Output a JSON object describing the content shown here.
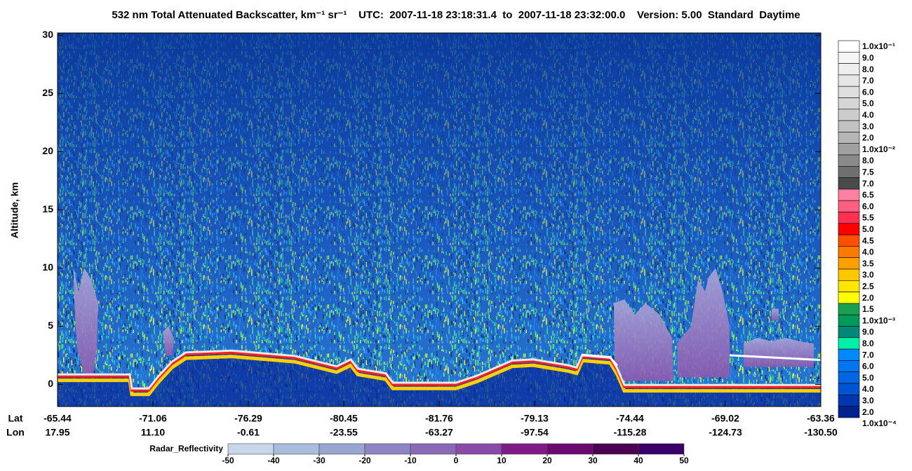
{
  "chart_data": {
    "type": "curtain",
    "title": "532 nm Total Attenuated Backscatter, km⁻¹ sr⁻¹    UTC:  2007-11-18 23:18:31.4  to  2007-11-18 23:32:00.0    Version: 5.00  Standard  Daytime",
    "y_label": "Altitude, km",
    "ylim": [
      -1.9,
      30.2
    ],
    "yticks": [
      0,
      5,
      10,
      15,
      20,
      25,
      30
    ],
    "lat_label": "Lat",
    "lon_label": "Lon",
    "lat": [
      "-65.44",
      "-71.06",
      "-76.29",
      "-80.45",
      "-81.76",
      "-79.13",
      "-74.44",
      "-69.02",
      "-63.36"
    ],
    "lon": [
      "17.95",
      "11.10",
      "-0.61",
      "-23.55",
      "-63.27",
      "-97.54",
      "-115.28",
      "-124.73",
      "-130.50"
    ],
    "colorbar": {
      "labels": [
        "1.0x10⁻¹",
        "9.0",
        "8.0",
        "7.0",
        "6.0",
        "5.0",
        "4.0",
        "3.0",
        "2.0",
        "1.0x10⁻²",
        "8.0",
        "7.5",
        "7.0",
        "6.5",
        "6.0",
        "5.5",
        "5.0",
        "4.5",
        "4.0",
        "3.5",
        "3.0",
        "2.5",
        "2.0",
        "1.5",
        "1.0x10⁻³",
        "9.0",
        "8.0",
        "7.0",
        "6.0",
        "5.0",
        "4.0",
        "3.0",
        "2.0",
        "1.0x10⁻⁴"
      ],
      "colors": [
        "#ffffff",
        "#f6f6f6",
        "#eeeeee",
        "#e6e6e6",
        "#dedede",
        "#d6d6d6",
        "#cccccc",
        "#c2c2c2",
        "#b6b6b6",
        "#a0a0a0",
        "#8a8a8a",
        "#707070",
        "#4a4a4a",
        "#ff80a0",
        "#ff6080",
        "#ff3050",
        "#ff0000",
        "#ff5000",
        "#ff7800",
        "#ffa000",
        "#ffc800",
        "#ffe600",
        "#ffff00",
        "#1aa050",
        "#009a5a",
        "#008878",
        "#00f0a8",
        "#0088ff",
        "#0076f2",
        "#0066e4",
        "#0054d4",
        "#0036b0",
        "#00228f"
      ]
    },
    "radar": {
      "label": "Radar_Reflectivity",
      "ticks": [
        -50,
        -40,
        -30,
        -20,
        -10,
        0,
        10,
        20,
        30,
        40,
        50
      ],
      "colors": [
        "#c8d6ea",
        "#a8bcdc",
        "#98a6d0",
        "#8c84c4",
        "#8a6ab8",
        "#8a4aa8",
        "#801a88",
        "#6a0a70",
        "#4a0050",
        "#3a006a"
      ]
    }
  }
}
